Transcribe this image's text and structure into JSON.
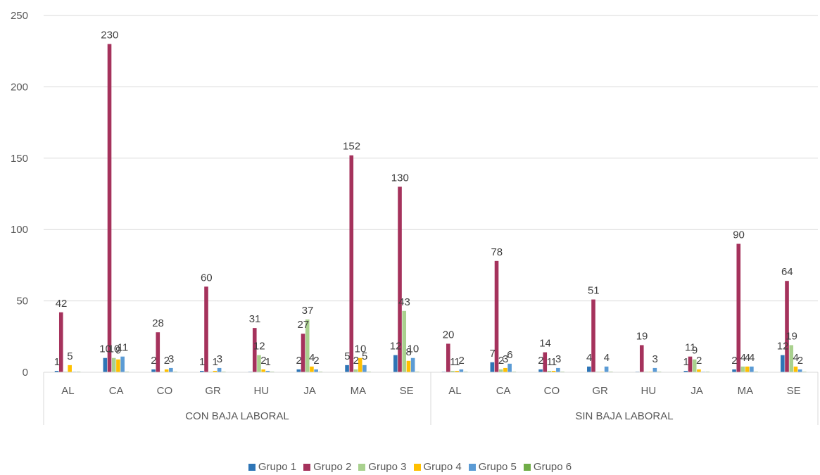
{
  "chart_data": {
    "type": "bar",
    "groups": [
      {
        "label": "CON BAJA LABORAL",
        "categories": [
          "AL",
          "CA",
          "CO",
          "GR",
          "HU",
          "JA",
          "MA",
          "SE"
        ]
      },
      {
        "label": "SIN BAJA LABORAL",
        "categories": [
          "AL",
          "CA",
          "CO",
          "GR",
          "HU",
          "JA",
          "MA",
          "SE"
        ]
      }
    ],
    "series": [
      {
        "name": "Grupo 1",
        "color": "#2E75B6",
        "values": [
          1,
          10,
          2,
          1,
          0,
          2,
          5,
          12,
          0,
          7,
          2,
          4,
          0,
          1,
          2,
          12
        ]
      },
      {
        "name": "Grupo 2",
        "color": "#A5325C",
        "values": [
          42,
          230,
          28,
          60,
          31,
          27,
          152,
          130,
          20,
          78,
          14,
          51,
          19,
          11,
          90,
          64
        ]
      },
      {
        "name": "Grupo 3",
        "color": "#A9D18E",
        "values": [
          0,
          10,
          0,
          0,
          12,
          37,
          2,
          43,
          1,
          2,
          1,
          0,
          0,
          9,
          4,
          19
        ]
      },
      {
        "name": "Grupo 4",
        "color": "#FFC000",
        "values": [
          5,
          9,
          2,
          1,
          2,
          4,
          10,
          8,
          1,
          3,
          1,
          0,
          0,
          2,
          4,
          4
        ]
      },
      {
        "name": "Grupo 5",
        "color": "#5B9BD5",
        "values": [
          0,
          11,
          3,
          3,
          1,
          2,
          5,
          10,
          2,
          6,
          3,
          4,
          3,
          0,
          4,
          2
        ]
      },
      {
        "name": "Grupo 6",
        "color": "#70AD47",
        "values": [
          0,
          0,
          0,
          0,
          0,
          0,
          0,
          0,
          0,
          0,
          0,
          0,
          0,
          0,
          0,
          0
        ]
      }
    ],
    "data_labels": [
      {
        "series": 0,
        "index": 0,
        "text": "1"
      },
      {
        "series": 1,
        "index": 0,
        "text": "42"
      },
      {
        "series": 3,
        "index": 0,
        "text": "5"
      },
      {
        "series": 0,
        "index": 1,
        "text": "10"
      },
      {
        "series": 1,
        "index": 1,
        "text": "230"
      },
      {
        "series": 2,
        "index": 1,
        "text": "10"
      },
      {
        "series": 3,
        "index": 1,
        "text": "9"
      },
      {
        "series": 4,
        "index": 1,
        "text": "11"
      },
      {
        "series": 0,
        "index": 2,
        "text": "2"
      },
      {
        "series": 1,
        "index": 2,
        "text": "28"
      },
      {
        "series": 3,
        "index": 2,
        "text": "2"
      },
      {
        "series": 4,
        "index": 2,
        "text": "3"
      },
      {
        "series": 0,
        "index": 3,
        "text": "1"
      },
      {
        "series": 1,
        "index": 3,
        "text": "60"
      },
      {
        "series": 3,
        "index": 3,
        "text": "1"
      },
      {
        "series": 4,
        "index": 3,
        "text": "3"
      },
      {
        "series": 1,
        "index": 4,
        "text": "31"
      },
      {
        "series": 2,
        "index": 4,
        "text": "12"
      },
      {
        "series": 3,
        "index": 4,
        "text": "2"
      },
      {
        "series": 4,
        "index": 4,
        "text": "1"
      },
      {
        "series": 0,
        "index": 5,
        "text": "2"
      },
      {
        "series": 1,
        "index": 5,
        "text": "27"
      },
      {
        "series": 2,
        "index": 5,
        "text": "37"
      },
      {
        "series": 3,
        "index": 5,
        "text": "4"
      },
      {
        "series": 4,
        "index": 5,
        "text": "2"
      },
      {
        "series": 0,
        "index": 6,
        "text": "5"
      },
      {
        "series": 1,
        "index": 6,
        "text": "152"
      },
      {
        "series": 2,
        "index": 6,
        "text": "2"
      },
      {
        "series": 3,
        "index": 6,
        "text": "10"
      },
      {
        "series": 4,
        "index": 6,
        "text": "5"
      },
      {
        "series": 0,
        "index": 7,
        "text": "12"
      },
      {
        "series": 1,
        "index": 7,
        "text": "130"
      },
      {
        "series": 2,
        "index": 7,
        "text": "43"
      },
      {
        "series": 3,
        "index": 7,
        "text": "8"
      },
      {
        "series": 4,
        "index": 7,
        "text": "10"
      },
      {
        "series": 1,
        "index": 8,
        "text": "20"
      },
      {
        "series": 2,
        "index": 8,
        "text": "1"
      },
      {
        "series": 3,
        "index": 8,
        "text": "1"
      },
      {
        "series": 4,
        "index": 8,
        "text": "2"
      },
      {
        "series": 0,
        "index": 9,
        "text": "7"
      },
      {
        "series": 1,
        "index": 9,
        "text": "78"
      },
      {
        "series": 2,
        "index": 9,
        "text": "2"
      },
      {
        "series": 3,
        "index": 9,
        "text": "3"
      },
      {
        "series": 4,
        "index": 9,
        "text": "6"
      },
      {
        "series": 0,
        "index": 10,
        "text": "2"
      },
      {
        "series": 1,
        "index": 10,
        "text": "14"
      },
      {
        "series": 2,
        "index": 10,
        "text": "1"
      },
      {
        "series": 3,
        "index": 10,
        "text": "1"
      },
      {
        "series": 4,
        "index": 10,
        "text": "3"
      },
      {
        "series": 0,
        "index": 11,
        "text": "4"
      },
      {
        "series": 1,
        "index": 11,
        "text": "51"
      },
      {
        "series": 4,
        "index": 11,
        "text": "4"
      },
      {
        "series": 1,
        "index": 12,
        "text": "19"
      },
      {
        "series": 4,
        "index": 12,
        "text": "3"
      },
      {
        "series": 0,
        "index": 13,
        "text": "1"
      },
      {
        "series": 1,
        "index": 13,
        "text": "11"
      },
      {
        "series": 2,
        "index": 13,
        "text": "9"
      },
      {
        "series": 3,
        "index": 13,
        "text": "2"
      },
      {
        "series": 0,
        "index": 14,
        "text": "2"
      },
      {
        "series": 1,
        "index": 14,
        "text": "90"
      },
      {
        "series": 2,
        "index": 14,
        "text": "4"
      },
      {
        "series": 3,
        "index": 14,
        "text": "4"
      },
      {
        "series": 4,
        "index": 14,
        "text": "4"
      },
      {
        "series": 0,
        "index": 15,
        "text": "12"
      },
      {
        "series": 1,
        "index": 15,
        "text": "64"
      },
      {
        "series": 2,
        "index": 15,
        "text": "19"
      },
      {
        "series": 3,
        "index": 15,
        "text": "4"
      },
      {
        "series": 4,
        "index": 15,
        "text": "2"
      }
    ],
    "yticks": [
      "0",
      "50",
      "100",
      "150",
      "200",
      "250"
    ],
    "ylim": [
      0,
      250
    ],
    "grid": true,
    "legend_position": "bottom",
    "title": "",
    "xlabel": "",
    "ylabel": ""
  }
}
